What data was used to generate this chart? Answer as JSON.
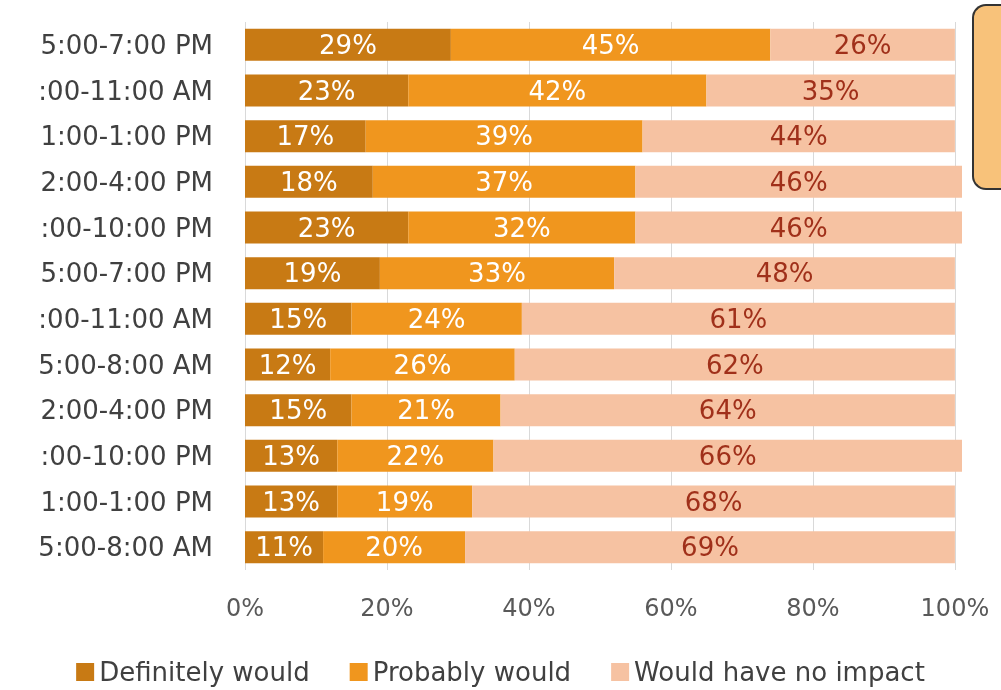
{
  "chart_data": {
    "type": "bar",
    "orientation": "horizontal",
    "stacked": true,
    "grid": "x",
    "legend": "bottom",
    "categories": [
      "5:00-7:00 PM",
      ":00-11:00 AM",
      "1:00-1:00 PM",
      "2:00-4:00 PM",
      ":00-10:00 PM",
      "5:00-7:00 PM",
      ":00-11:00 AM",
      "5:00-8:00 AM",
      "2:00-4:00 PM",
      ":00-10:00 PM",
      "1:00-1:00 PM",
      "5:00-8:00 AM"
    ],
    "xlim": [
      0,
      101
    ],
    "xticks": [
      {
        "value": 0,
        "label": "0%"
      },
      {
        "value": 20,
        "label": "20%"
      },
      {
        "value": 40,
        "label": "40%"
      },
      {
        "value": 60,
        "label": "60%"
      },
      {
        "value": 80,
        "label": "80%"
      },
      {
        "value": 100,
        "label": "100%"
      }
    ],
    "series": [
      {
        "name": "Definitely would",
        "color": "#c87a14",
        "values": [
          29,
          23,
          17,
          18,
          23,
          19,
          15,
          12,
          15,
          13,
          13,
          11
        ],
        "value_labels": [
          "29%",
          "23%",
          "17%",
          "18%",
          "23%",
          "19%",
          "15%",
          "12%",
          "15%",
          "13%",
          "13%",
          "11%"
        ]
      },
      {
        "name": "Probably would",
        "color": "#f0961e",
        "values": [
          45,
          42,
          39,
          37,
          32,
          33,
          24,
          26,
          21,
          22,
          19,
          20
        ],
        "value_labels": [
          "45%",
          "42%",
          "39%",
          "37%",
          "32%",
          "33%",
          "24%",
          "26%",
          "21%",
          "22%",
          "19%",
          "20%"
        ]
      },
      {
        "name": "Would have no impact",
        "color": "#f6c2a2",
        "values": [
          26,
          35,
          44,
          46,
          46,
          48,
          61,
          62,
          64,
          66,
          68,
          69
        ],
        "value_labels": [
          "26%",
          "35%",
          "44%",
          "46%",
          "46%",
          "48%",
          "61%",
          "62%",
          "64%",
          "66%",
          "68%",
          "69%"
        ]
      }
    ]
  }
}
